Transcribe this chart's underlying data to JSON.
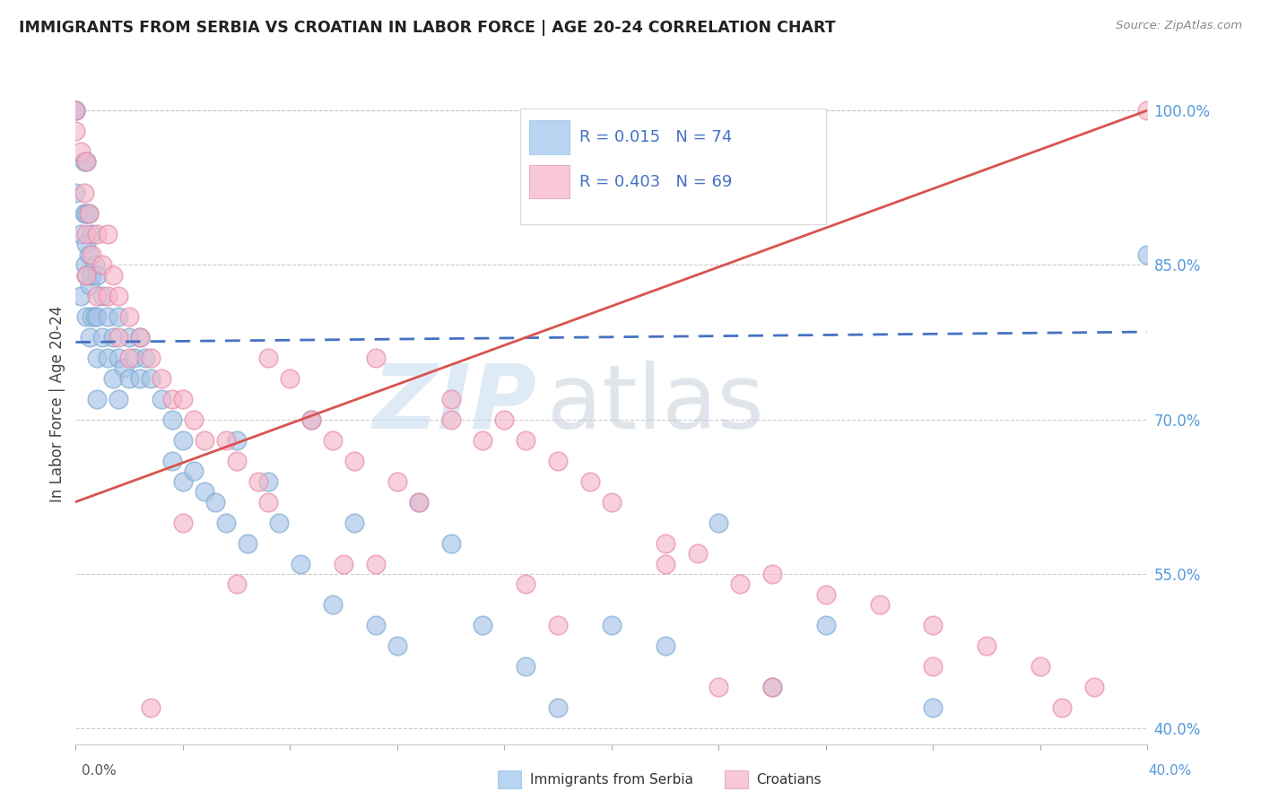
{
  "title": "IMMIGRANTS FROM SERBIA VS CROATIAN IN LABOR FORCE | AGE 20-24 CORRELATION CHART",
  "source": "Source: ZipAtlas.com",
  "ylabel": "In Labor Force | Age 20-24",
  "xlim": [
    0.0,
    1.0
  ],
  "ylim": [
    0.385,
    1.045
  ],
  "y_tick_values": [
    0.4,
    0.55,
    0.7,
    0.85,
    1.0
  ],
  "y_tick_labels": [
    "40.0%",
    "55.0%",
    "70.0%",
    "85.0%",
    "100.0%"
  ],
  "x_left_label": "0.0%",
  "x_right_label": "40.0%",
  "serbia_R": 0.015,
  "serbia_N": 74,
  "croatia_R": 0.403,
  "croatia_N": 69,
  "serbia_dot_color": "#a8c4e8",
  "serbia_edge_color": "#7aaad0",
  "croatia_dot_color": "#f5b8c8",
  "croatia_edge_color": "#e888a8",
  "serbia_line_color": "#4472c4",
  "croatia_line_color": "#d9534f",
  "serbia_legend_fill": "#b8d4f0",
  "croatia_legend_fill": "#f8c8d8",
  "watermark_zip_color": "#c8ddf0",
  "watermark_atlas_color": "#c0ccd8",
  "serbia_x": [
    0.0,
    0.0,
    0.0,
    0.005,
    0.005,
    0.008,
    0.008,
    0.009,
    0.01,
    0.01,
    0.01,
    0.01,
    0.01,
    0.012,
    0.012,
    0.013,
    0.013,
    0.015,
    0.015,
    0.015,
    0.018,
    0.018,
    0.02,
    0.02,
    0.02,
    0.02,
    0.025,
    0.025,
    0.03,
    0.03,
    0.035,
    0.035,
    0.04,
    0.04,
    0.04,
    0.045,
    0.05,
    0.05,
    0.055,
    0.06,
    0.06,
    0.065,
    0.07,
    0.08,
    0.09,
    0.09,
    0.1,
    0.1,
    0.11,
    0.12,
    0.13,
    0.14,
    0.15,
    0.16,
    0.18,
    0.19,
    0.21,
    0.22,
    0.24,
    0.26,
    0.28,
    0.3,
    0.32,
    0.35,
    0.38,
    0.42,
    0.45,
    0.5,
    0.55,
    0.6,
    0.65,
    0.7,
    0.8,
    1.0
  ],
  "serbia_y": [
    1.0,
    1.0,
    0.92,
    0.88,
    0.82,
    0.95,
    0.9,
    0.85,
    0.95,
    0.9,
    0.87,
    0.84,
    0.8,
    0.9,
    0.86,
    0.83,
    0.78,
    0.88,
    0.84,
    0.8,
    0.85,
    0.8,
    0.84,
    0.8,
    0.76,
    0.72,
    0.82,
    0.78,
    0.8,
    0.76,
    0.78,
    0.74,
    0.8,
    0.76,
    0.72,
    0.75,
    0.78,
    0.74,
    0.76,
    0.78,
    0.74,
    0.76,
    0.74,
    0.72,
    0.7,
    0.66,
    0.68,
    0.64,
    0.65,
    0.63,
    0.62,
    0.6,
    0.68,
    0.58,
    0.64,
    0.6,
    0.56,
    0.7,
    0.52,
    0.6,
    0.5,
    0.48,
    0.62,
    0.58,
    0.5,
    0.46,
    0.42,
    0.5,
    0.48,
    0.6,
    0.44,
    0.5,
    0.42,
    0.86
  ],
  "croatia_x": [
    0.0,
    0.0,
    0.005,
    0.008,
    0.01,
    0.01,
    0.01,
    0.012,
    0.015,
    0.02,
    0.02,
    0.025,
    0.03,
    0.03,
    0.035,
    0.04,
    0.04,
    0.05,
    0.05,
    0.06,
    0.07,
    0.08,
    0.09,
    0.1,
    0.11,
    0.12,
    0.14,
    0.15,
    0.17,
    0.18,
    0.2,
    0.22,
    0.24,
    0.26,
    0.28,
    0.3,
    0.32,
    0.35,
    0.38,
    0.4,
    0.42,
    0.45,
    0.48,
    0.5,
    0.55,
    0.58,
    0.62,
    0.65,
    0.7,
    0.75,
    0.8,
    0.85,
    0.9,
    0.95,
    1.0,
    0.1,
    0.18,
    0.25,
    0.35,
    0.42,
    0.55,
    0.65,
    0.8,
    0.92,
    0.07,
    0.15,
    0.28,
    0.45,
    0.6
  ],
  "croatia_y": [
    1.0,
    0.98,
    0.96,
    0.92,
    0.95,
    0.88,
    0.84,
    0.9,
    0.86,
    0.88,
    0.82,
    0.85,
    0.88,
    0.82,
    0.84,
    0.82,
    0.78,
    0.8,
    0.76,
    0.78,
    0.76,
    0.74,
    0.72,
    0.72,
    0.7,
    0.68,
    0.68,
    0.66,
    0.64,
    0.76,
    0.74,
    0.7,
    0.68,
    0.66,
    0.76,
    0.64,
    0.62,
    0.72,
    0.68,
    0.7,
    0.68,
    0.66,
    0.64,
    0.62,
    0.58,
    0.57,
    0.54,
    0.55,
    0.53,
    0.52,
    0.5,
    0.48,
    0.46,
    0.44,
    1.0,
    0.6,
    0.62,
    0.56,
    0.7,
    0.54,
    0.56,
    0.44,
    0.46,
    0.42,
    0.42,
    0.54,
    0.56,
    0.5,
    0.44
  ],
  "serbia_trend": [
    0.0,
    1.0,
    0.775,
    0.785
  ],
  "croatia_trend": [
    0.0,
    1.0,
    0.62,
    1.0
  ]
}
